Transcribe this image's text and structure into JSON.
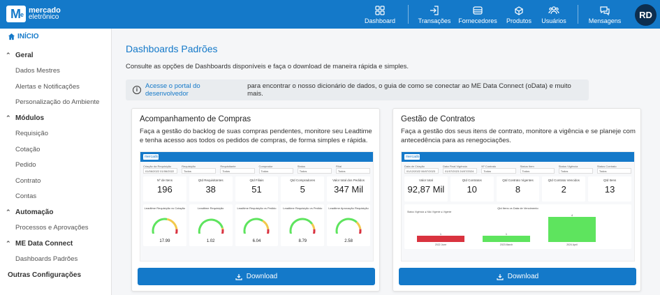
{
  "brand": {
    "line1": "mercado",
    "line2": "eletrônico",
    "mark": "M",
    "mark_sup": "e"
  },
  "nav": [
    {
      "label": "Dashboard",
      "icon": "grid-icon"
    },
    {
      "label": "Transações",
      "icon": "login-icon"
    },
    {
      "label": "Fornecedores",
      "icon": "factory-icon"
    },
    {
      "label": "Produtos",
      "icon": "box-icon"
    },
    {
      "label": "Usuários",
      "icon": "users-icon"
    },
    {
      "label": "Mensagens",
      "icon": "chat-icon"
    }
  ],
  "user": {
    "initials": "RD"
  },
  "sidebar": {
    "home": "INÍCIO",
    "sections": [
      {
        "label": "Geral",
        "items": [
          "Dados Mestres",
          "Alertas e Notificações",
          "Personalização do Ambiente"
        ]
      },
      {
        "label": "Módulos",
        "items": [
          "Requisição",
          "Cotação",
          "Pedido",
          "Contrato",
          "Contas"
        ]
      },
      {
        "label": "Automação",
        "items": [
          "Processos e Aprovações"
        ]
      },
      {
        "label": "ME Data Connect",
        "items": [
          "Dashboards Padrões"
        ]
      }
    ],
    "other": "Outras Configurações"
  },
  "page": {
    "title": "Dashboards Padrões",
    "subtitle": "Consulte as opções de Dashboards disponíveis e faça o download de maneira rápida e simples.",
    "info_link": "Acesse o portal do desenvolvedor",
    "info_text": "para encontrar o nosso dicionário de dados, o guia de como se conectar ao ME Data Connect (oData) e muito mais."
  },
  "cards": [
    {
      "title": "Acompanhamento de Compras",
      "description": "Faça a gestão do backlog de suas compras pendentes, monitore seu Leadtime e tenha acesso aos todos os pedidos de compras, de forma simples e rápida.",
      "download": "Download",
      "preview": {
        "brand": "mercado",
        "filters": [
          {
            "label": "Criação da Requisição",
            "value": "01/06/2022  01/06/2022"
          },
          {
            "label": "Requisição",
            "value": "Todos"
          },
          {
            "label": "Requisitante",
            "value": "Todos"
          },
          {
            "label": "Comprador",
            "value": "Todos"
          },
          {
            "label": "Status",
            "value": "Todos"
          },
          {
            "label": "Filial",
            "value": "Todos"
          }
        ],
        "kpis": [
          {
            "label": "Nº de Itens",
            "value": "196"
          },
          {
            "label": "Qtd Requisitantes",
            "value": "38"
          },
          {
            "label": "Qtd Filiais",
            "value": "51"
          },
          {
            "label": "Qtd Compradores",
            "value": "5"
          },
          {
            "label": "Valor total dos Pedidos",
            "value": "347 Mil"
          }
        ],
        "gauges": [
          {
            "label": "Leadtime Requisição vs Cotação",
            "value": "17.99",
            "fill": 0.55
          },
          {
            "label": "Leadtime Requisição",
            "value": "1.02",
            "fill": 0.85
          },
          {
            "label": "Leadtime Requisição vs Pedido",
            "value": "6.04",
            "fill": 0.65
          },
          {
            "label": "Leadtime Requisição vs Pedido",
            "value": "8.79",
            "fill": 0.75
          },
          {
            "label": "Leadtime Aprovação Requisição",
            "value": "2.58",
            "fill": 0.7
          }
        ]
      }
    },
    {
      "title": "Gestão de Contratos",
      "description": "Faça a gestão dos seus itens de contrato, monitore a vigência e se planeje com antecedência para as renegociações.",
      "download": "Download",
      "preview": {
        "brand": "mercado",
        "filters": [
          {
            "label": "Data de Criação",
            "value": "01/12/2022  06/07/2023"
          },
          {
            "label": "Data Final Vigência",
            "value": "01/07/2023  24/07/2024"
          },
          {
            "label": "Nº Contrato",
            "value": "Todos"
          },
          {
            "label": "Status Item",
            "value": "Todos"
          },
          {
            "label": "Status Vigência",
            "value": "Todos"
          },
          {
            "label": "Status Contrato",
            "value": "Todos"
          }
        ],
        "kpis": [
          {
            "label": "Valor total",
            "value": "92,87 Mil"
          },
          {
            "label": "Qtd Contratos",
            "value": "10"
          },
          {
            "label": "Qtd Contrato Vigentes",
            "value": "8"
          },
          {
            "label": "Qtd Contrato Vencidos",
            "value": "2"
          },
          {
            "label": "Qtd Itens",
            "value": "13"
          }
        ],
        "bar_title": "Qtd Itens vs Data de Vencimento",
        "bar_legend": "Status Vigência  ● Não Vigente  ● Vigente",
        "bars": [
          {
            "label": "2022 June",
            "value": 1,
            "color": "#d9333f"
          },
          {
            "label": "2023 March",
            "value": 1,
            "color": "#5ee45e"
          },
          {
            "label": "2024 April",
            "value": 4,
            "color": "#5ee45e"
          }
        ]
      }
    }
  ]
}
